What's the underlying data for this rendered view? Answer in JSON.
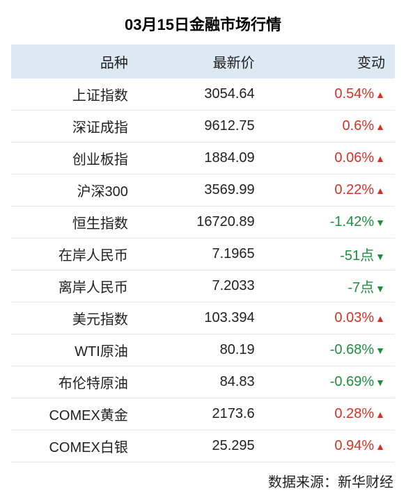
{
  "title": "03月15日金融市场行情",
  "columns": [
    "品种",
    "最新价",
    "变动"
  ],
  "rows": [
    {
      "name": "上证指数",
      "price": "3054.64",
      "change": "0.54%",
      "direction": "up"
    },
    {
      "name": "深证成指",
      "price": "9612.75",
      "change": "0.6%",
      "direction": "up"
    },
    {
      "name": "创业板指",
      "price": "1884.09",
      "change": "0.06%",
      "direction": "up"
    },
    {
      "name": "沪深300",
      "price": "3569.99",
      "change": "0.22%",
      "direction": "up"
    },
    {
      "name": "恒生指数",
      "price": "16720.89",
      "change": "-1.42%",
      "direction": "down"
    },
    {
      "name": "在岸人民币",
      "price": "7.1965",
      "change": "-51点",
      "direction": "down"
    },
    {
      "name": "离岸人民币",
      "price": "7.2033",
      "change": "-7点",
      "direction": "down"
    },
    {
      "name": "美元指数",
      "price": "103.394",
      "change": "0.03%",
      "direction": "up"
    },
    {
      "name": "WTI原油",
      "price": "80.19",
      "change": "-0.68%",
      "direction": "down"
    },
    {
      "name": "布伦特原油",
      "price": "84.83",
      "change": "-0.69%",
      "direction": "down"
    },
    {
      "name": "COMEX黄金",
      "price": "2173.6",
      "change": "0.28%",
      "direction": "up"
    },
    {
      "name": "COMEX白银",
      "price": "25.295",
      "change": "0.94%",
      "direction": "up"
    }
  ],
  "arrows": {
    "up": "▲",
    "down": "▼"
  },
  "source_label": "数据来源：新华财经",
  "colors": {
    "header_bg": "#dce8f2",
    "up": "#d93025",
    "down": "#1e8e3e",
    "text": "#212121",
    "border": "#e5e5e5",
    "background": "#ffffff"
  }
}
